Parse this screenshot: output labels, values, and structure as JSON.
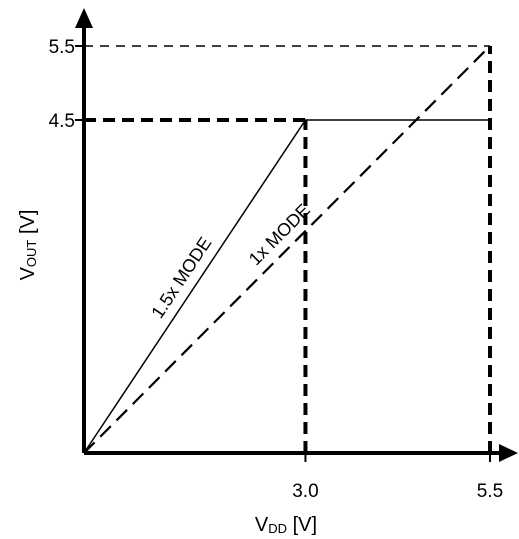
{
  "chart_data": {
    "type": "line",
    "title": "",
    "xlabel": {
      "main": "V",
      "sub": "DD",
      "unit": " [V]"
    },
    "ylabel": {
      "main": "V",
      "sub": "OUT",
      "unit": " [V]"
    },
    "xlim": [
      0,
      5.5
    ],
    "ylim": [
      0,
      5.5
    ],
    "x_ticks": [
      {
        "value": 3.0,
        "label": "3.0"
      },
      {
        "value": 5.5,
        "label": "5.5"
      }
    ],
    "y_ticks": [
      {
        "value": 4.5,
        "label": "4.5"
      },
      {
        "value": 5.5,
        "label": "5.5"
      }
    ],
    "grid": false,
    "series": [
      {
        "label": "1.5x MODE",
        "style": "solid",
        "points": [
          [
            0,
            0
          ],
          [
            3.0,
            4.5
          ],
          [
            5.5,
            4.5
          ]
        ]
      },
      {
        "label": "1x MODE",
        "style": "dashed",
        "points": [
          [
            0,
            0
          ],
          [
            5.5,
            5.5
          ]
        ]
      }
    ],
    "guides": [
      {
        "style": "dashed-bold",
        "points": [
          [
            0,
            4.5
          ],
          [
            3.0,
            4.5
          ]
        ]
      },
      {
        "style": "dashed-bold",
        "points": [
          [
            3.0,
            0
          ],
          [
            3.0,
            4.5
          ]
        ]
      },
      {
        "style": "dashed-bold",
        "points": [
          [
            5.5,
            0
          ],
          [
            5.5,
            5.5
          ]
        ]
      },
      {
        "style": "dashed-thin",
        "points": [
          [
            0,
            5.5
          ],
          [
            5.5,
            5.5
          ]
        ]
      }
    ]
  },
  "colors": {
    "ink": "#000000",
    "background": "#ffffff"
  }
}
